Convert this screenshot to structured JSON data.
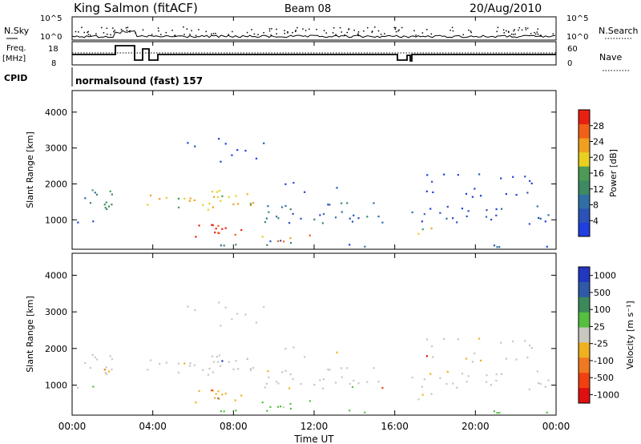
{
  "header": {
    "station": "King Salmon (fitACF)",
    "beam": "Beam 08",
    "date": "20/Aug/2010"
  },
  "top_panels": {
    "nsky_label": "N.Sky",
    "nsky_ticks": [
      "10^5",
      "10^0"
    ],
    "nsearch_label": "N.Search",
    "nsearch_ticks": [
      "10^5",
      "10^0"
    ],
    "freq_label": "Freq.",
    "freq_unit": "[MHz]",
    "freq_ticks": [
      "18",
      "8"
    ],
    "nave_label": "Nave",
    "nave_ticks": [
      "60",
      "0"
    ],
    "cpid_label": "CPID",
    "cpid_text": "normalsound (fast) 157"
  },
  "colors": {
    "power_scale": [
      "#1f3fe0",
      "#2a52b8",
      "#2f6fa6",
      "#3e8a62",
      "#4c9a55",
      "#e8d020",
      "#f0a020",
      "#f06018",
      "#e82010"
    ],
    "velocity_scale": [
      "#2238c0",
      "#2e5aa8",
      "#3c8a5c",
      "#55c040",
      "#c8c8c0",
      "#f0b020",
      "#f07820",
      "#f04010",
      "#e01010"
    ]
  },
  "chart_data": [
    {
      "type": "heatmap",
      "title": "Power",
      "xlabel": "Time UT",
      "ylabel": "Slant Range [km]",
      "x_ticks": [
        "00:00",
        "04:00",
        "08:00",
        "12:00",
        "16:00",
        "20:00",
        "00:00"
      ],
      "y_ticks": [
        1000,
        2000,
        3000,
        4000
      ],
      "ylim": [
        180,
        4600
      ],
      "colorbar": {
        "label": "Power [dB]",
        "ticks": [
          4,
          8,
          12,
          16,
          20,
          24,
          28
        ],
        "range": [
          0,
          32
        ]
      }
    },
    {
      "type": "heatmap",
      "title": "Velocity",
      "xlabel": "Time UT",
      "ylabel": "Slant Range [km]",
      "x_ticks": [
        "00:00",
        "04:00",
        "08:00",
        "12:00",
        "16:00",
        "20:00",
        "00:00"
      ],
      "y_ticks": [
        1000,
        2000,
        3000,
        4000
      ],
      "ylim": [
        180,
        4600
      ],
      "colorbar": {
        "label": "Velocity [m s⁻¹]",
        "ticks": [
          "1000",
          "500",
          "100",
          "25",
          "-25",
          "-100",
          "-500",
          "-1000"
        ]
      }
    }
  ]
}
